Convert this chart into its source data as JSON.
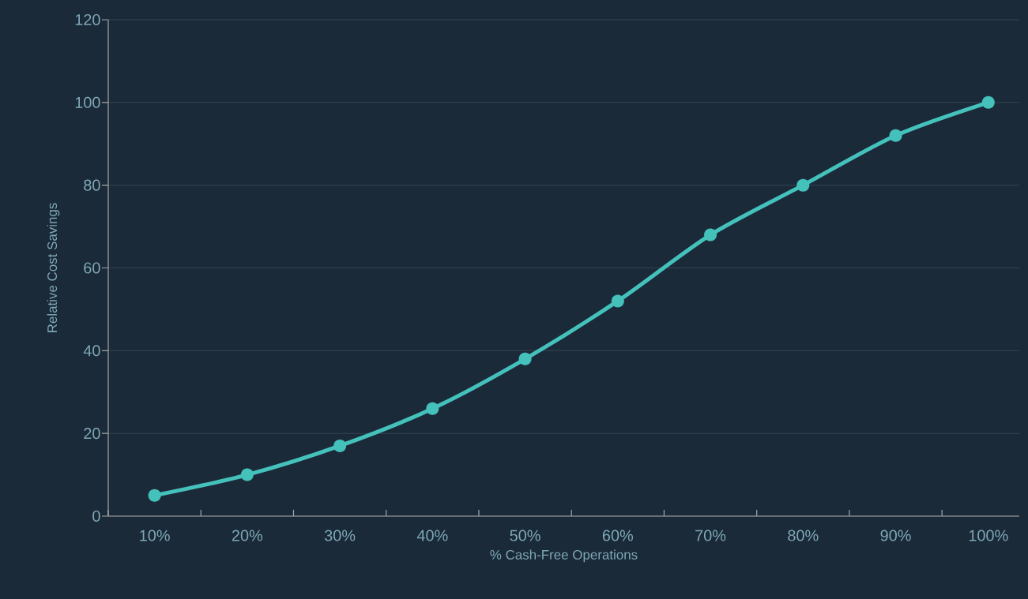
{
  "chart_data": {
    "type": "line",
    "xlabel": "% Cash-Free Operations",
    "ylabel": "Relative Cost Savings",
    "categories": [
      "10%",
      "20%",
      "30%",
      "40%",
      "50%",
      "60%",
      "70%",
      "80%",
      "90%",
      "100%"
    ],
    "values": [
      5,
      10,
      17,
      26,
      38,
      52,
      68,
      80,
      92,
      100
    ],
    "color": "#45c1bc",
    "ylim": [
      0,
      120
    ],
    "yticks": [
      0,
      20,
      40,
      60,
      80,
      100,
      120
    ],
    "grid": "y",
    "marker": "circle",
    "line_style": "solid"
  }
}
